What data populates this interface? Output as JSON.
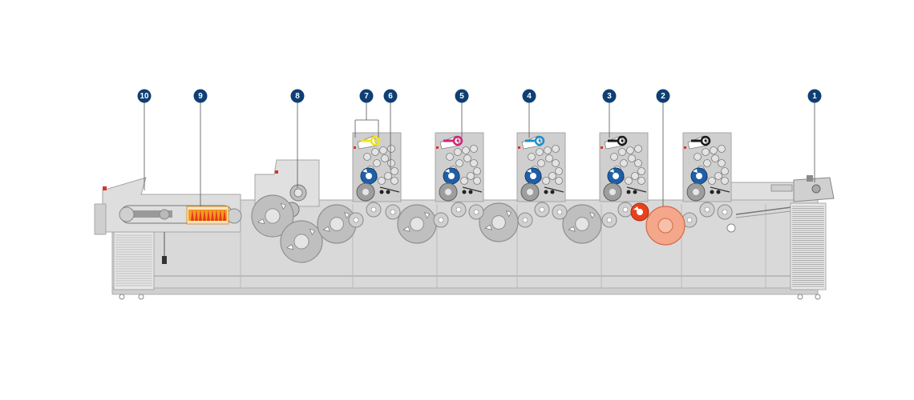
{
  "callouts": [
    {
      "label": "10"
    },
    {
      "label": "9"
    },
    {
      "label": "8"
    },
    {
      "label": "7"
    },
    {
      "label": "6"
    },
    {
      "label": "5"
    },
    {
      "label": "4"
    },
    {
      "label": "3"
    },
    {
      "label": "2"
    },
    {
      "label": "1"
    }
  ],
  "colors": {
    "badge": "#0f3f73",
    "frame": "#d9d9d9",
    "frame_stroke": "#a6a6a6",
    "cylinder": "#bfbfbf",
    "tower_panel": "#cfcfcf",
    "yellow": "#f4e511",
    "magenta": "#d4237b",
    "cyan": "#1e8fce",
    "black": "#1a1a1a",
    "blue_roller": "#1f5fa8",
    "red_unit": "#e8421b",
    "salmon_cylinder": "#f4a78a",
    "dryer_orange": "#f39a1f",
    "dryer_red": "#e53a1a"
  },
  "ink_units": [
    {
      "ink": "yellow"
    },
    {
      "ink": "magenta"
    },
    {
      "ink": "cyan"
    },
    {
      "ink": "black"
    },
    {
      "ink": "black"
    }
  ]
}
